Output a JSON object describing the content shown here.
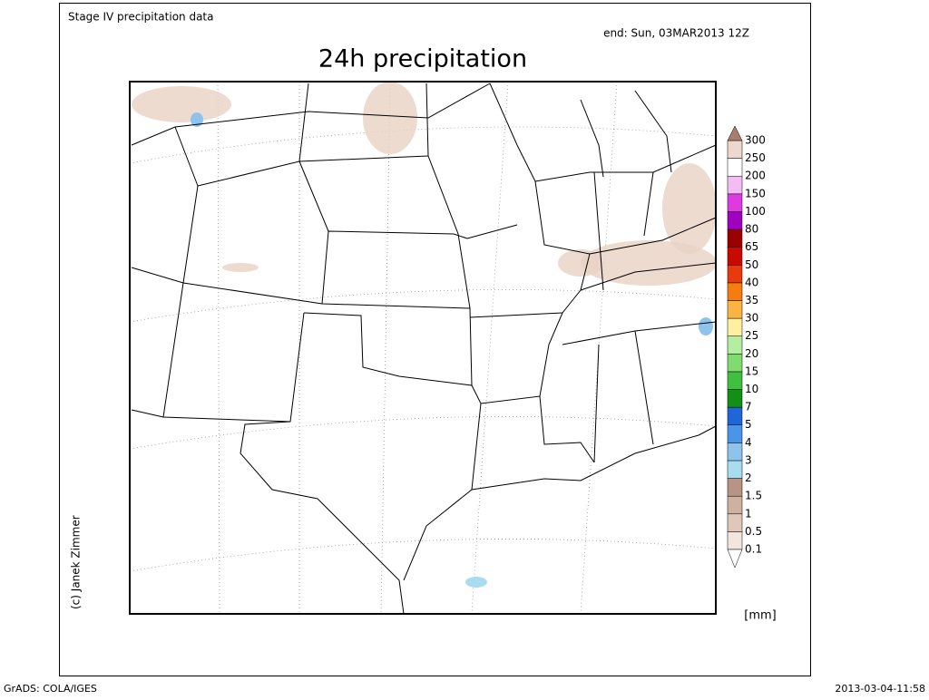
{
  "header": {
    "dataset": "Stage IV precipitation data",
    "valid": "end: Sun, 03MAR2013 12Z",
    "title": "24h precipitation"
  },
  "credit": "(c) Janek Zimmer",
  "colorbar": {
    "levels": [
      0.1,
      0.5,
      1,
      1.5,
      2,
      3,
      4,
      5,
      7,
      10,
      15,
      20,
      25,
      30,
      35,
      40,
      50,
      65,
      80,
      100,
      150,
      200,
      250,
      300
    ],
    "colors": [
      "#f2e6de",
      "#dfc8b9",
      "#cfb1a2",
      "#b99384",
      "#a9dcef",
      "#8ec3ee",
      "#4a95e8",
      "#1f66d6",
      "#139013",
      "#40c040",
      "#80dc70",
      "#b4eea0",
      "#fff0a0",
      "#fbb444",
      "#f47c10",
      "#e83a0c",
      "#c80a00",
      "#9a0000",
      "#a000c0",
      "#de3ae0",
      "#f4bcf4",
      "#ffffff",
      "#ecd8cc"
    ],
    "under_color": "#ffffff",
    "over_color": "#a87e6e",
    "unit": "[mm]"
  },
  "footer": {
    "left": "GrADS: COLA/IGES",
    "right": "2013-03-04-11:58"
  }
}
